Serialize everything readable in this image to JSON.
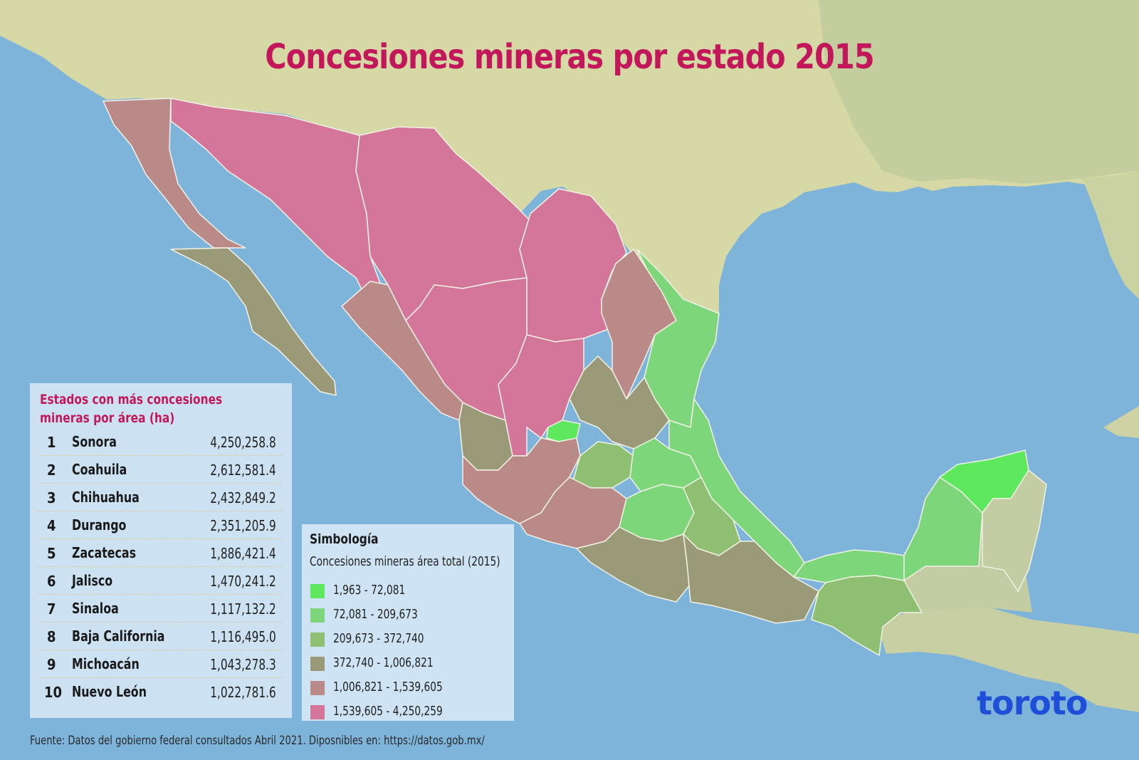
{
  "title": "Concesiones mineras por estado 2015",
  "ranking": {
    "title_line1": "Estados con más concesiones",
    "title_line2": "mineras por área (ha)",
    "rows": [
      {
        "rank": "1",
        "state": "Sonora",
        "value": "4,250,258.8"
      },
      {
        "rank": "2",
        "state": "Coahuila",
        "value": "2,612,581.4"
      },
      {
        "rank": "3",
        "state": "Chihuahua",
        "value": "2,432,849.2"
      },
      {
        "rank": "4",
        "state": "Durango",
        "value": "2,351,205.9"
      },
      {
        "rank": "5",
        "state": "Zacatecas",
        "value": "1,886,421.4"
      },
      {
        "rank": "6",
        "state": "Jalisco",
        "value": "1,470,241.2"
      },
      {
        "rank": "7",
        "state": "Sinaloa",
        "value": "1,117,132.2"
      },
      {
        "rank": "8",
        "state": "Baja California",
        "value": "1,116,495.0"
      },
      {
        "rank": "9",
        "state": "Michoacán",
        "value": "1,043,278.3"
      },
      {
        "rank": "10",
        "state": "Nuevo León",
        "value": "1,022,781.6"
      }
    ]
  },
  "legend": {
    "title": "Simbología",
    "subtitle": "Concesiones mineras área total (2015)",
    "items": [
      {
        "label": "1,963 - 72,081",
        "color": "#5ee85e"
      },
      {
        "label": "72,081 - 209,673",
        "color": "#7dd67a"
      },
      {
        "label": "209,673 - 372,740",
        "color": "#8fbf72"
      },
      {
        "label": "372,740 - 1,006,821",
        "color": "#9a9a78"
      },
      {
        "label": "1,006,821 - 1,539,605",
        "color": "#b98a88"
      },
      {
        "label": "1,539,605 - 4,250,259",
        "color": "#d4769a"
      }
    ]
  },
  "source": "Fuente: Datos del gobierno federal consultados Abril 2021. Diposnibles en: https://datos.gob.mx/",
  "brand": "toroto",
  "colors": {
    "ocean": "#7fb4da",
    "land": "#d9d9a8",
    "title": "#c2185b",
    "brand": "#1f4fd8"
  }
}
